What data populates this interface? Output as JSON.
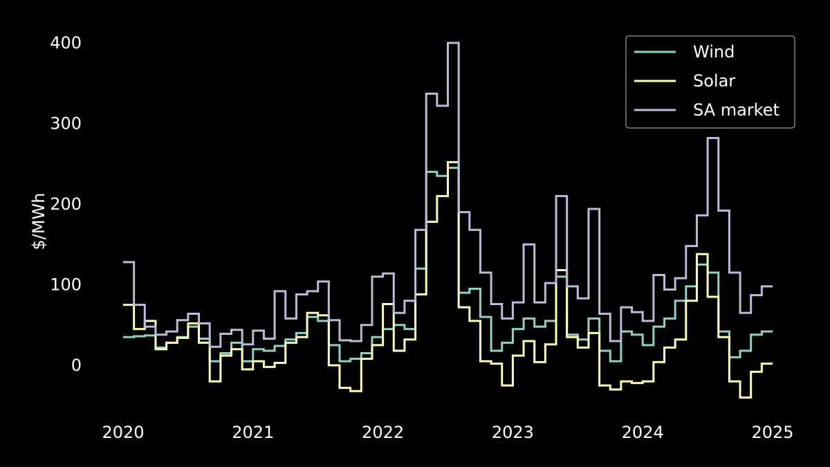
{
  "chart_data": {
    "type": "line",
    "step": true,
    "ylabel": "$/MWh",
    "xlim": [
      2020.0,
      2025.0
    ],
    "ylim": [
      -60,
      410
    ],
    "x_ticks": [
      2020,
      2021,
      2022,
      2023,
      2024,
      2025
    ],
    "y_ticks": [
      0,
      100,
      200,
      300,
      400
    ],
    "grid": false,
    "legend_position": "top-right",
    "series": [
      {
        "name": "Wind",
        "color": "#8dd3c7",
        "values": [
          35,
          36,
          37,
          22,
          28,
          35,
          48,
          33,
          5,
          15,
          28,
          5,
          20,
          18,
          24,
          32,
          40,
          60,
          55,
          25,
          5,
          8,
          15,
          35,
          45,
          50,
          45,
          120,
          240,
          235,
          245,
          90,
          95,
          60,
          18,
          28,
          45,
          58,
          48,
          55,
          110,
          38,
          32,
          58,
          18,
          5,
          42,
          38,
          25,
          48,
          58,
          80,
          98,
          125,
          115,
          42,
          10,
          18,
          38,
          42
        ]
      },
      {
        "name": "Solar",
        "color": "#ffffb3",
        "values": [
          75,
          45,
          55,
          20,
          28,
          34,
          52,
          28,
          -20,
          12,
          20,
          -5,
          5,
          -2,
          3,
          28,
          35,
          65,
          62,
          0,
          -28,
          -32,
          8,
          25,
          76,
          18,
          32,
          88,
          178,
          210,
          252,
          72,
          55,
          5,
          2,
          -25,
          12,
          30,
          4,
          26,
          118,
          35,
          22,
          40,
          -25,
          -30,
          -20,
          -22,
          -20,
          4,
          22,
          32,
          80,
          138,
          85,
          35,
          -20,
          -40,
          -8,
          2
        ]
      },
      {
        "name": "SA market",
        "color": "#bebada",
        "values": [
          128,
          75,
          48,
          38,
          42,
          56,
          64,
          52,
          23,
          39,
          44,
          26,
          43,
          33,
          92,
          58,
          88,
          92,
          104,
          56,
          31,
          30,
          50,
          110,
          114,
          65,
          80,
          168,
          337,
          322,
          400,
          190,
          168,
          115,
          76,
          58,
          78,
          150,
          78,
          102,
          210,
          98,
          83,
          194,
          64,
          30,
          72,
          66,
          55,
          112,
          94,
          108,
          148,
          186,
          282,
          192,
          115,
          65,
          87,
          98
        ]
      }
    ]
  }
}
